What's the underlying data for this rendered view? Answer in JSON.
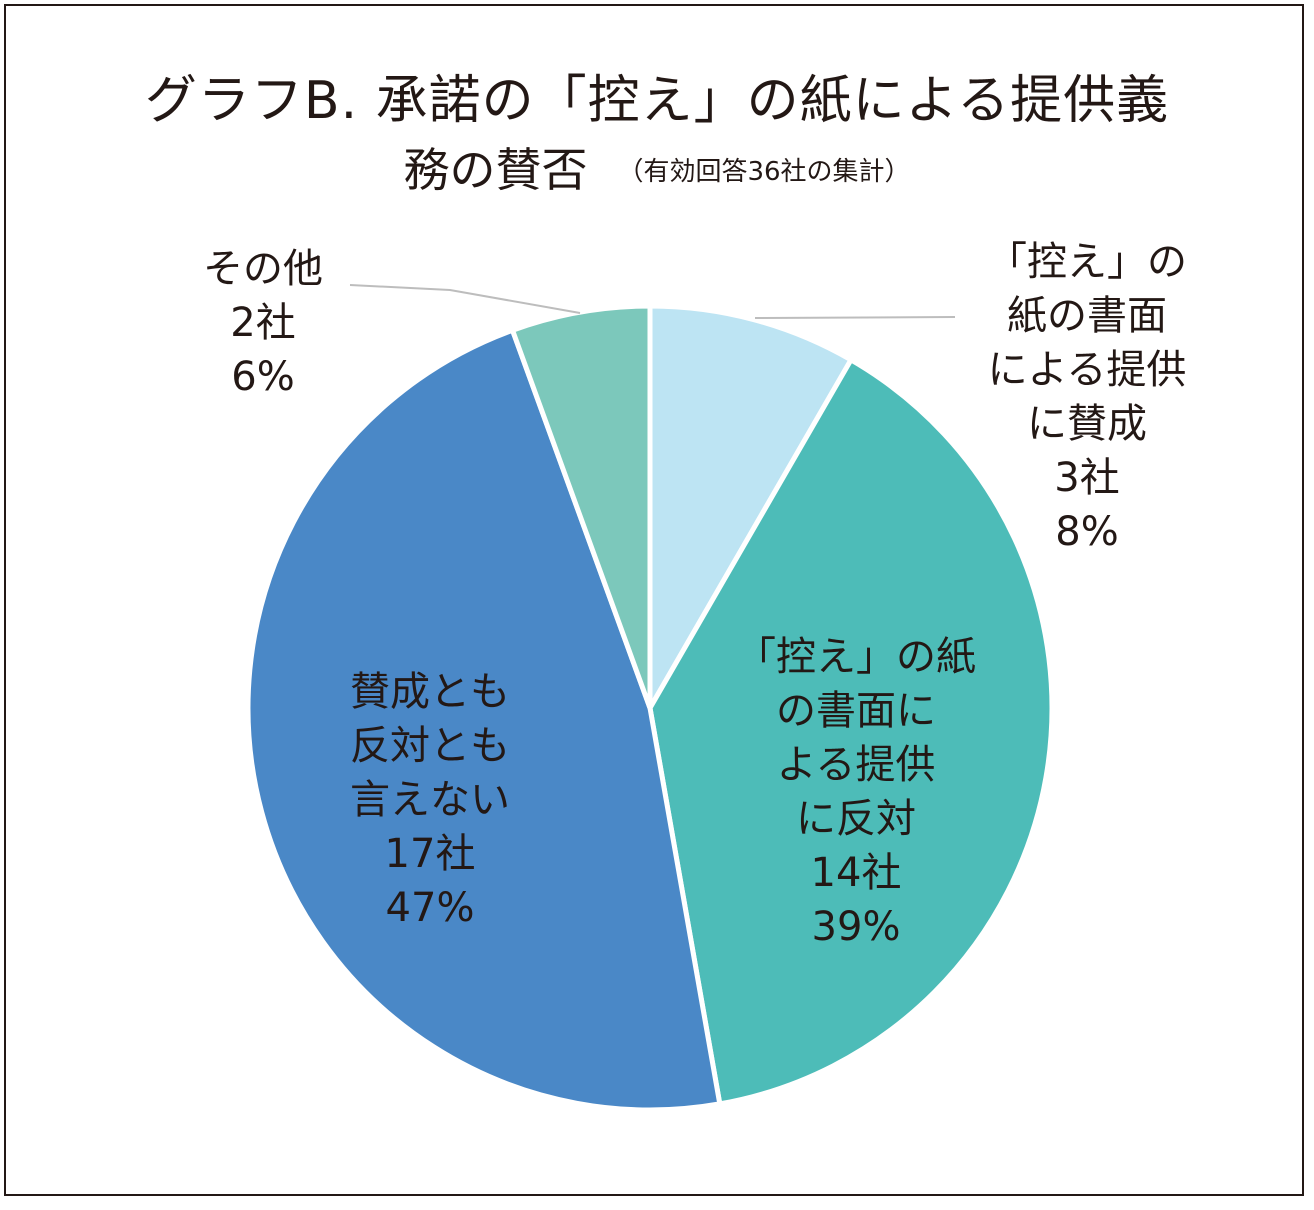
{
  "title_line1": "グラフB.  承諾の「控え」の紙による提供義",
  "title_line2": "務の賛否",
  "subtitle": "（有効回答36社の集計）",
  "chart_data": {
    "type": "pie",
    "title": "グラフB. 承諾の「控え」の紙による提供義務の賛否",
    "subtitle": "（有効回答36社の集計）",
    "slices": [
      {
        "label_lines": [
          "「控え」の",
          "紙の書面",
          "による提供",
          "に賛成"
        ],
        "count": "3社",
        "percent": "8%",
        "value": 3,
        "color": "#bde4f3"
      },
      {
        "label_lines": [
          "「控え」の紙",
          "の書面に",
          "よる提供",
          "に反対"
        ],
        "count": "14社",
        "percent": "39%",
        "value": 14,
        "color": "#4dbcb8"
      },
      {
        "label_lines": [
          "賛成とも",
          "反対とも",
          "言えない"
        ],
        "count": "17社",
        "percent": "47%",
        "value": 17,
        "color": "#4a88c7"
      },
      {
        "label_lines": [
          "その他"
        ],
        "count": "2社",
        "percent": "6%",
        "value": 2,
        "color": "#7cc8bb"
      }
    ]
  }
}
